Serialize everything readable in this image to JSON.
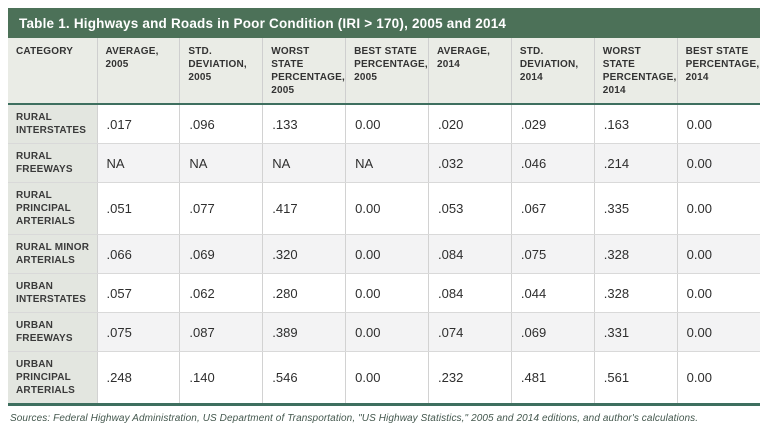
{
  "table": {
    "title": "Table 1. Highways and Roads in Poor Condition (IRI > 170), 2005 and 2014",
    "columns": [
      "CATEGORY",
      "AVERAGE, 2005",
      "STD. DEVIATION, 2005",
      "WORST STATE PERCENTAGE, 2005",
      "BEST STATE PERCENTAGE, 2005",
      "AVERAGE, 2014",
      "STD. DEVIATION, 2014",
      "WORST STATE PERCENTAGE, 2014",
      "BEST STATE PERCENTAGE, 2014"
    ],
    "rows": [
      {
        "category": "RURAL INTERSTATES",
        "values": [
          ".017",
          ".096",
          ".133",
          "0.00",
          ".020",
          ".029",
          ".163",
          "0.00"
        ]
      },
      {
        "category": "RURAL FREEWAYS",
        "values": [
          "NA",
          "NA",
          "NA",
          "NA",
          ".032",
          ".046",
          ".214",
          "0.00"
        ]
      },
      {
        "category": "RURAL PRINCIPAL ARTERIALS",
        "values": [
          ".051",
          ".077",
          ".417",
          "0.00",
          ".053",
          ".067",
          ".335",
          "0.00"
        ]
      },
      {
        "category": "RURAL MINOR ARTERIALS",
        "values": [
          ".066",
          ".069",
          ".320",
          "0.00",
          ".084",
          ".075",
          ".328",
          "0.00"
        ]
      },
      {
        "category": "URBAN INTERSTATES",
        "values": [
          ".057",
          ".062",
          ".280",
          "0.00",
          ".084",
          ".044",
          ".328",
          "0.00"
        ]
      },
      {
        "category": "URBAN FREEWAYS",
        "values": [
          ".075",
          ".087",
          ".389",
          "0.00",
          ".074",
          ".069",
          ".331",
          "0.00"
        ]
      },
      {
        "category": "URBAN PRINCIPAL ARTERIALS",
        "values": [
          ".248",
          ".140",
          ".546",
          "0.00",
          ".232",
          ".481",
          ".561",
          "0.00"
        ]
      }
    ],
    "source_note": "Sources: Federal Highway Administration, US Department of Transportation, \"US Highway Statistics,\" 2005 and 2014 editions, and author's calculations."
  },
  "chart_data": {
    "type": "table",
    "title": "Table 1. Highways and Roads in Poor Condition (IRI > 170), 2005 and 2014",
    "categories": [
      "RURAL INTERSTATES",
      "RURAL FREEWAYS",
      "RURAL PRINCIPAL ARTERIALS",
      "RURAL MINOR ARTERIALS",
      "URBAN INTERSTATES",
      "URBAN FREEWAYS",
      "URBAN PRINCIPAL ARTERIALS"
    ],
    "series": [
      {
        "name": "AVERAGE, 2005",
        "values": [
          ".017",
          "NA",
          ".051",
          ".066",
          ".057",
          ".075",
          ".248"
        ]
      },
      {
        "name": "STD. DEVIATION, 2005",
        "values": [
          ".096",
          "NA",
          ".077",
          ".069",
          ".062",
          ".087",
          ".140"
        ]
      },
      {
        "name": "WORST STATE PERCENTAGE, 2005",
        "values": [
          ".133",
          "NA",
          ".417",
          ".320",
          ".280",
          ".389",
          ".546"
        ]
      },
      {
        "name": "BEST STATE PERCENTAGE, 2005",
        "values": [
          "0.00",
          "NA",
          "0.00",
          "0.00",
          "0.00",
          "0.00",
          "0.00"
        ]
      },
      {
        "name": "AVERAGE, 2014",
        "values": [
          ".020",
          ".032",
          ".053",
          ".084",
          ".084",
          ".074",
          ".232"
        ]
      },
      {
        "name": "STD. DEVIATION, 2014",
        "values": [
          ".029",
          ".046",
          ".067",
          ".075",
          ".044",
          ".069",
          ".481"
        ]
      },
      {
        "name": "WORST STATE PERCENTAGE, 2014",
        "values": [
          ".163",
          ".214",
          ".335",
          ".328",
          ".328",
          ".331",
          ".561"
        ]
      },
      {
        "name": "BEST STATE PERCENTAGE, 2014",
        "values": [
          "0.00",
          "0.00",
          "0.00",
          "0.00",
          "0.00",
          "0.00",
          "0.00"
        ]
      }
    ]
  },
  "colors": {
    "title_bar_green": "#4C7158",
    "accent_rule_green": "#3E6F5F",
    "header_bg": "#EAECE6",
    "category_bg": "#E3E6E0",
    "alt_row_bg": "#F3F3F4",
    "source_text": "#44584E"
  }
}
